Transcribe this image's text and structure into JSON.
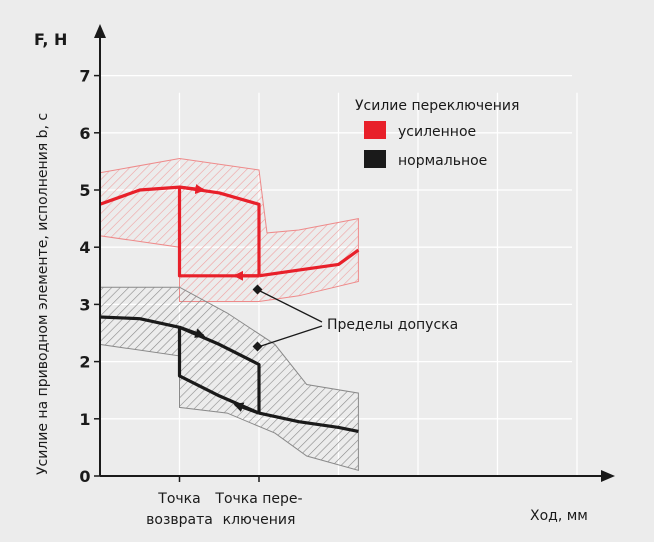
{
  "chart_data": {
    "type": "line",
    "title": "",
    "y_unit_label": "F, Н",
    "ylabel": "Усилие на приводном элементе, исполнения b, с",
    "xlabel": "Ход, мм",
    "ylim": [
      0,
      7.6
    ],
    "y_ticks": [
      "0",
      "1",
      "2",
      "3",
      "4",
      "5",
      "6",
      "7"
    ],
    "x_tick_labels": [
      {
        "x": 1,
        "lines": [
          "Точка",
          "возврата"
        ]
      },
      {
        "x": 2,
        "lines": [
          "Точка пере-",
          "ключения"
        ]
      }
    ],
    "grid": true,
    "legend": {
      "title": "Усилие переключения",
      "position": "top-right",
      "entries": [
        {
          "label": "усиленное",
          "color": "#e8202a"
        },
        {
          "label": "нормальное",
          "color": "#1a1a1a"
        }
      ]
    },
    "annotation": "Пределы допуска",
    "series": [
      {
        "name": "усиленное",
        "color": "#e8202a",
        "forward": [
          [
            0,
            4.75
          ],
          [
            0.5,
            5.0
          ],
          [
            1.0,
            5.05
          ],
          [
            1.5,
            4.95
          ],
          [
            2.0,
            4.75
          ],
          [
            2.0,
            3.5
          ]
        ],
        "return_stroke": [
          [
            2.0,
            3.5
          ],
          [
            1.5,
            3.5
          ],
          [
            1.0,
            3.5
          ],
          [
            1.0,
            5.05
          ]
        ],
        "tail": [
          [
            2.0,
            3.5
          ],
          [
            2.5,
            3.6
          ],
          [
            3.0,
            3.7
          ],
          [
            3.25,
            3.95
          ]
        ],
        "band_upper": [
          [
            0,
            5.3
          ],
          [
            1.0,
            5.55
          ],
          [
            2.0,
            5.35
          ],
          [
            2.1,
            4.25
          ],
          [
            2.5,
            4.3
          ],
          [
            3.25,
            4.5
          ]
        ],
        "band_lower": [
          [
            0,
            4.2
          ],
          [
            1.0,
            4.0
          ],
          [
            1.0,
            3.05
          ],
          [
            2.0,
            3.05
          ],
          [
            2.5,
            3.15
          ],
          [
            3.25,
            3.4
          ]
        ]
      },
      {
        "name": "нормальное",
        "color": "#1a1a1a",
        "forward": [
          [
            0,
            2.78
          ],
          [
            0.5,
            2.75
          ],
          [
            1.0,
            2.6
          ],
          [
            1.5,
            2.3
          ],
          [
            2.0,
            1.95
          ],
          [
            2.0,
            1.1
          ]
        ],
        "return_stroke": [
          [
            2.0,
            1.1
          ],
          [
            1.5,
            1.4
          ],
          [
            1.0,
            1.75
          ],
          [
            1.0,
            2.6
          ]
        ],
        "tail": [
          [
            2.0,
            1.1
          ],
          [
            2.5,
            0.95
          ],
          [
            3.0,
            0.85
          ],
          [
            3.25,
            0.78
          ]
        ],
        "band_upper": [
          [
            0,
            3.3
          ],
          [
            1.0,
            3.3
          ],
          [
            1.6,
            2.85
          ],
          [
            2.2,
            2.3
          ],
          [
            2.6,
            1.6
          ],
          [
            3.25,
            1.45
          ]
        ],
        "band_lower": [
          [
            0,
            2.3
          ],
          [
            1.0,
            2.1
          ],
          [
            1.0,
            1.2
          ],
          [
            1.6,
            1.1
          ],
          [
            2.2,
            0.75
          ],
          [
            2.6,
            0.35
          ],
          [
            3.25,
            0.1
          ]
        ]
      }
    ]
  }
}
